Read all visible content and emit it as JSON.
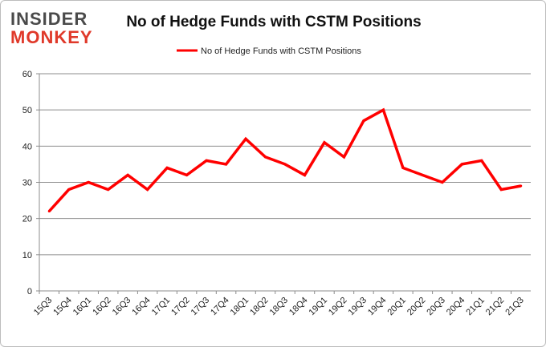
{
  "logo": {
    "line1": "INSIDER",
    "line2": "MONKEY"
  },
  "chart_data": {
    "type": "line",
    "title": "No of Hedge Funds with CSTM Positions",
    "xlabel": "",
    "ylabel": "",
    "ylim": [
      0,
      60
    ],
    "yticks": [
      0,
      10,
      20,
      30,
      40,
      50,
      60
    ],
    "grid": true,
    "legend_position": "top",
    "categories": [
      "15Q3",
      "15Q4",
      "16Q1",
      "16Q2",
      "16Q3",
      "16Q4",
      "17Q1",
      "17Q2",
      "17Q3",
      "17Q4",
      "18Q1",
      "18Q2",
      "18Q3",
      "18Q4",
      "19Q1",
      "19Q2",
      "19Q3",
      "19Q4",
      "20Q1",
      "20Q2",
      "20Q3",
      "20Q4",
      "21Q1",
      "21Q2",
      "21Q3"
    ],
    "series": [
      {
        "name": "No of Hedge Funds with CSTM Positions",
        "color": "#ff0000",
        "values": [
          22,
          28,
          30,
          28,
          32,
          28,
          34,
          32,
          36,
          35,
          42,
          37,
          35,
          32,
          41,
          37,
          47,
          50,
          34,
          32,
          30,
          35,
          36,
          28,
          29
        ]
      }
    ]
  }
}
